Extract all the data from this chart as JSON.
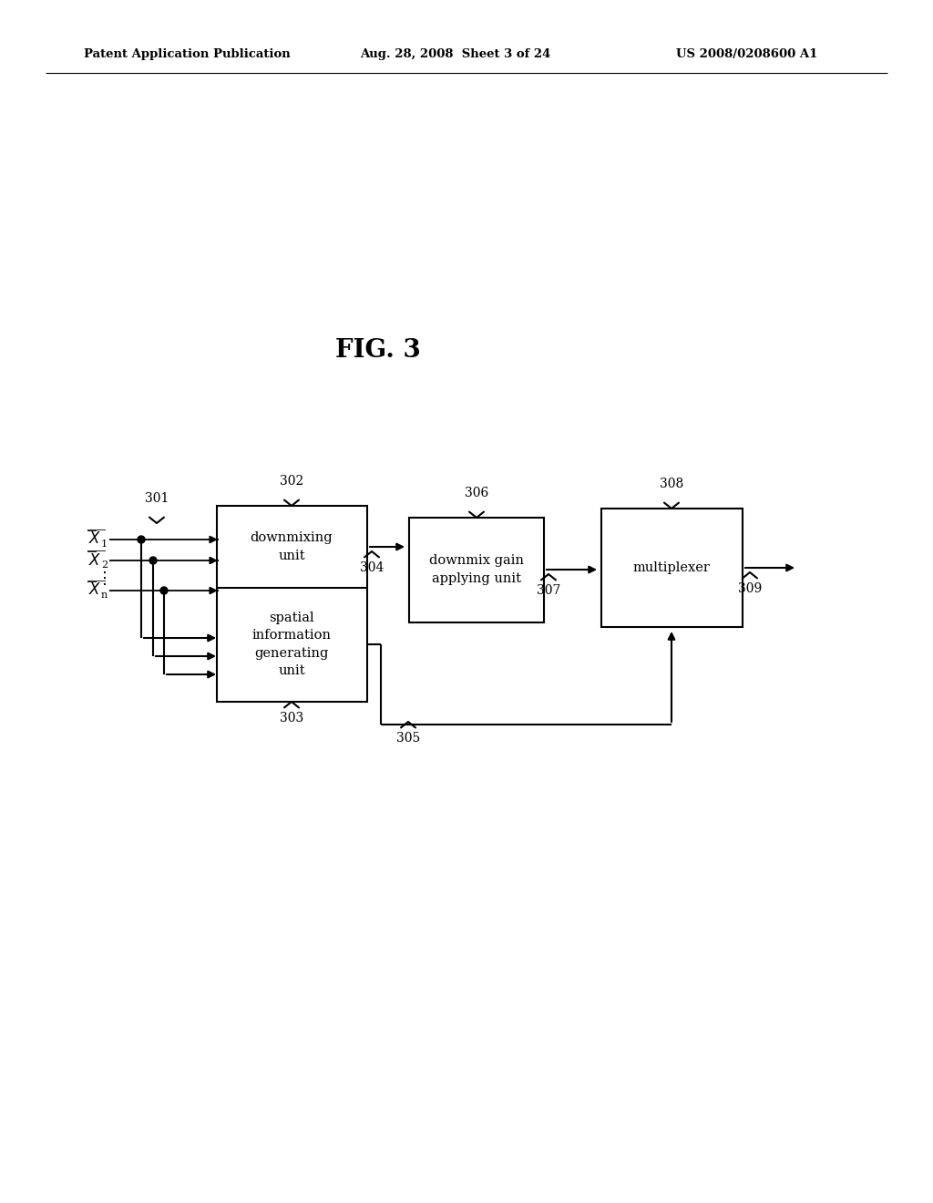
{
  "bg_color": "#ffffff",
  "header_left": "Patent Application Publication",
  "header_mid": "Aug. 28, 2008  Sheet 3 of 24",
  "header_right": "US 2008/0208600 A1",
  "fig_label": "FIG. 3",
  "box1_text": "downmixing\nunit",
  "box2_text": "spatial\ninformation\ngenerating\nunit",
  "box3_text": "downmix gain\napplying unit",
  "box4_text": "multiplexer"
}
